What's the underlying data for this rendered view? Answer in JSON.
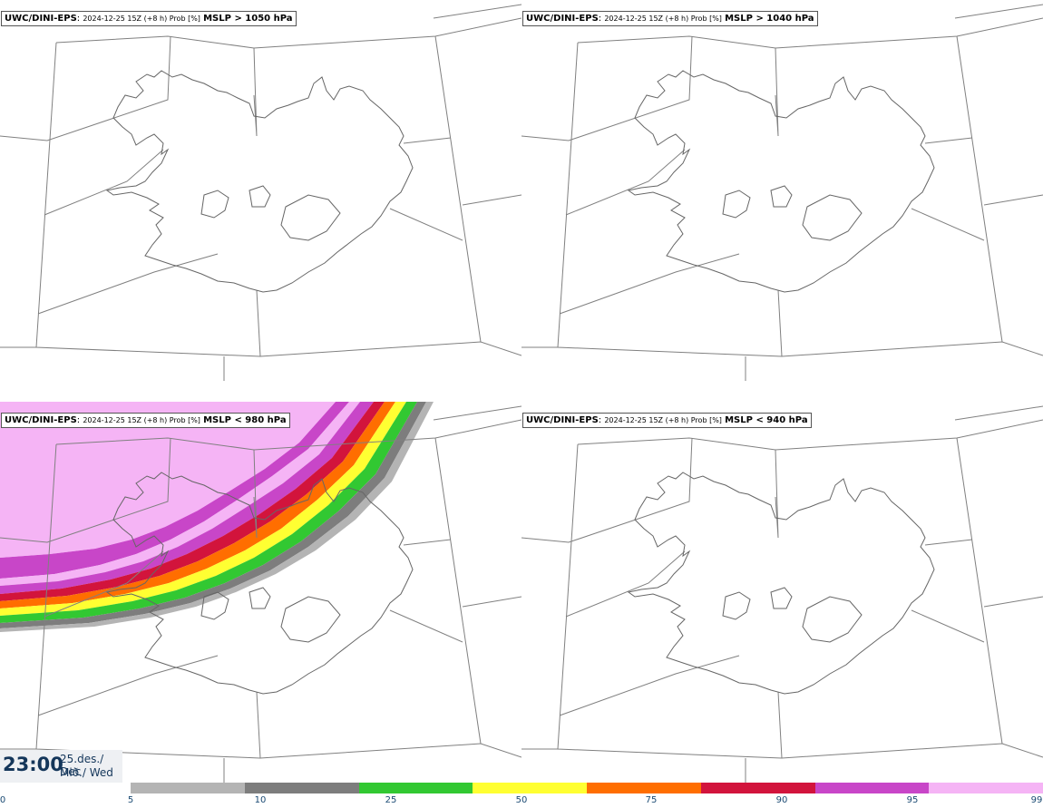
{
  "panels": [
    {
      "source": "UWC/DINI-EPS",
      "meta": "2024-12-25 15Z (+8 h) Prob [%]",
      "variable": "MSLP > 1050 hPa"
    },
    {
      "source": "UWC/DINI-EPS",
      "meta": "2024-12-25 15Z (+8 h) Prob [%]",
      "variable": "MSLP > 1040 hPa"
    },
    {
      "source": "UWC/DINI-EPS",
      "meta": "2024-12-25 15Z (+8 h) Prob [%]",
      "variable": "MSLP < 980 hPa"
    },
    {
      "source": "UWC/DINI-EPS",
      "meta": "2024-12-25 15Z (+8 h) Prob [%]",
      "variable": "MSLP < 940 hPa"
    }
  ],
  "valid_time": {
    "time": "23:00",
    "date_line1": "25.des./ Dec",
    "date_line2": "Mið./ Wed"
  },
  "colorbar": {
    "ticks": [
      "0",
      "5",
      "10",
      "25",
      "50",
      "75",
      "90",
      "95",
      "99"
    ],
    "colors": [
      "#b4b4b4",
      "#7d7d7d",
      "#32c832",
      "#ffff32",
      "#ff6e00",
      "#d2143c",
      "#c846c8",
      "#f5b4f5"
    ]
  }
}
